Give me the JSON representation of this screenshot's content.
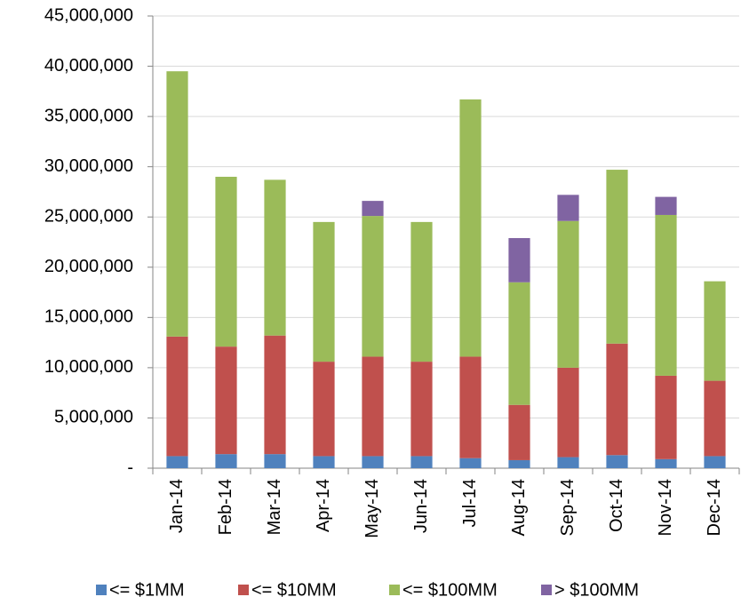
{
  "chart_data": {
    "type": "stacked_bar",
    "categories": [
      "Jan-14",
      "Feb-14",
      "Mar-14",
      "Apr-14",
      "May-14",
      "Jun-14",
      "Jul-14",
      "Aug-14",
      "Sep-14",
      "Oct-14",
      "Nov-14",
      "Dec-14"
    ],
    "series": [
      {
        "name": "<= $1MM",
        "color": "#4f81bd",
        "values": [
          1200000,
          1400000,
          1400000,
          1200000,
          1200000,
          1200000,
          1000000,
          800000,
          1100000,
          1300000,
          900000,
          1200000
        ]
      },
      {
        "name": "<= $10MM",
        "color": "#c0504d",
        "values": [
          11900000,
          10700000,
          11800000,
          9400000,
          9900000,
          9400000,
          10100000,
          5500000,
          8900000,
          11100000,
          8300000,
          7500000
        ]
      },
      {
        "name": "<= $100MM",
        "color": "#9bbb59",
        "values": [
          26400000,
          16900000,
          15500000,
          13900000,
          14000000,
          13900000,
          25600000,
          12200000,
          14600000,
          17300000,
          16000000,
          9900000
        ]
      },
      {
        "name": "> $100MM",
        "color": "#8064a2",
        "values": [
          0,
          0,
          0,
          0,
          1500000,
          0,
          0,
          4400000,
          2600000,
          0,
          1800000,
          0
        ]
      }
    ],
    "ylim": [
      0,
      45000000
    ],
    "yticks": [
      {
        "value": 0,
        "label": "-"
      },
      {
        "value": 5000000,
        "label": "5,000,000"
      },
      {
        "value": 10000000,
        "label": "10,000,000"
      },
      {
        "value": 15000000,
        "label": "15,000,000"
      },
      {
        "value": 20000000,
        "label": "20,000,000"
      },
      {
        "value": 25000000,
        "label": "25,000,000"
      },
      {
        "value": 30000000,
        "label": "30,000,000"
      },
      {
        "value": 35000000,
        "label": "35,000,000"
      },
      {
        "value": 40000000,
        "label": "40,000,000"
      },
      {
        "value": 45000000,
        "label": "45,000,000"
      }
    ],
    "grid": true,
    "legend": "bottom"
  }
}
